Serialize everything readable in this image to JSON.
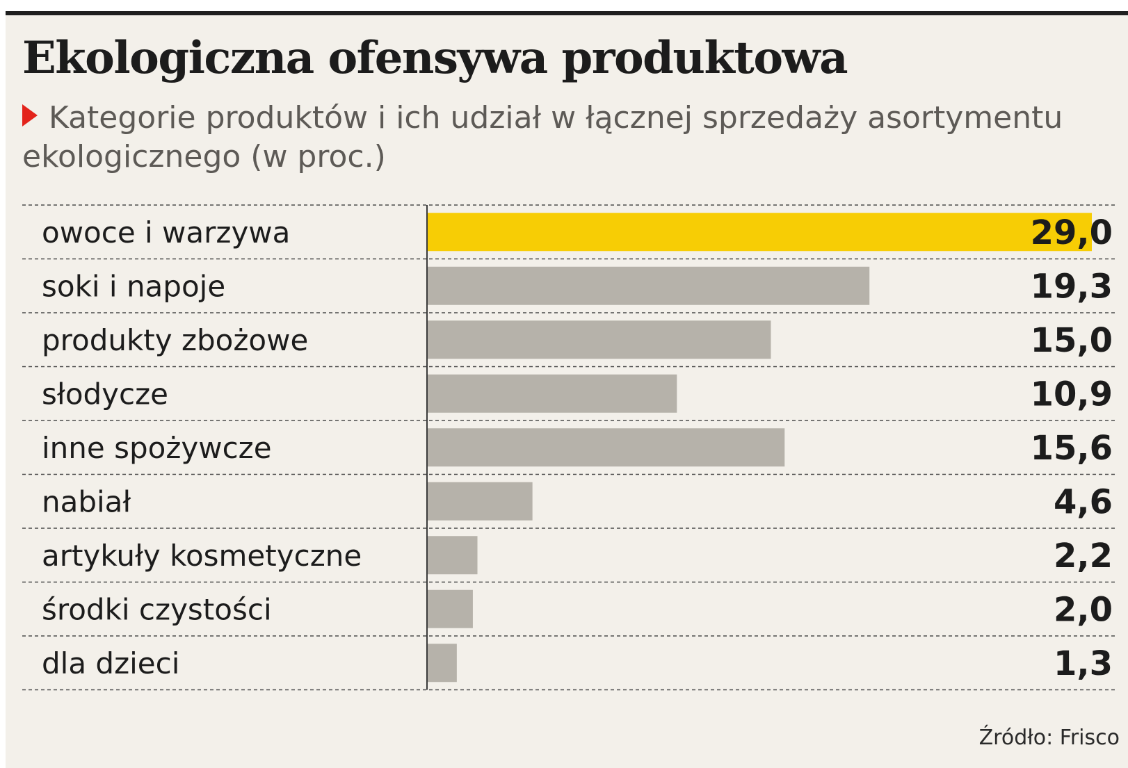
{
  "title": "Ekologiczna ofensywa produktowa",
  "subtitle": "Kategorie produktów i ich udział w łącznej sprzedaży asortymentu ekologicznego (w proc.)",
  "source": "Źródło: Frisco",
  "colors": {
    "highlight_bar": "#f7cd05",
    "bar": "#b6b2aa",
    "marker": "#e3231b",
    "background": "#f3f0ea",
    "text": "#1c1c1c"
  },
  "chart_data": {
    "type": "bar",
    "orientation": "horizontal",
    "categories": [
      "owoce i warzywa",
      "soki i napoje",
      "produkty zbożowe",
      "słodycze",
      "inne spożywcze",
      "nabiał",
      "artykuły kosmetyczne",
      "środki czystości",
      "dla dzieci"
    ],
    "values": [
      29.0,
      19.3,
      15.0,
      10.9,
      15.6,
      4.6,
      2.2,
      2.0,
      1.3
    ],
    "value_labels": [
      "29,0",
      "19,3",
      "15,0",
      "10,9",
      "15,6",
      "4,6",
      "2,2",
      "2,0",
      "1,3"
    ],
    "highlighted_category": "owoce i warzywa",
    "xlim": [
      0,
      29.0
    ],
    "grid": false,
    "legend": "none"
  }
}
